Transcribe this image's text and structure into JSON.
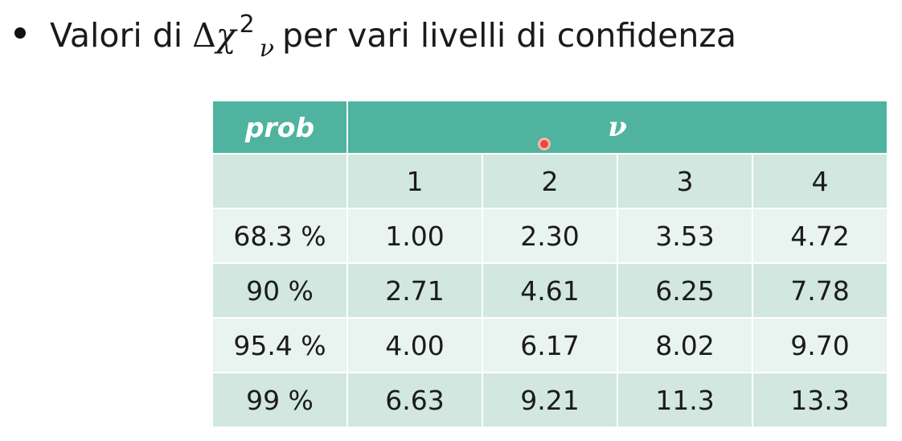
{
  "bullet": {
    "text_before": "Valori di",
    "delta": "Δ",
    "chi": "χ",
    "superscript": "2",
    "subscript": "ν",
    "text_after": "per vari livelli di confidenza"
  },
  "table": {
    "header": {
      "prob": "prob",
      "nu": "ν"
    },
    "columns": [
      "1",
      "2",
      "3",
      "4"
    ],
    "rows": [
      {
        "prob": "68.3 %",
        "values": [
          "1.00",
          "2.30",
          "3.53",
          "4.72"
        ]
      },
      {
        "prob": "90 %",
        "values": [
          "2.71",
          "4.61",
          "6.25",
          "7.78"
        ]
      },
      {
        "prob": "95.4 %",
        "values": [
          "4.00",
          "6.17",
          "8.02",
          "9.70"
        ]
      },
      {
        "prob": "99 %",
        "values": [
          "6.63",
          "9.21",
          "11.3",
          "13.3"
        ]
      }
    ]
  },
  "colors": {
    "header_bg": "#4fb39f",
    "row_dark": "#d1e7df",
    "row_light": "#e9f3ef",
    "pointer": "#e84b3c"
  }
}
